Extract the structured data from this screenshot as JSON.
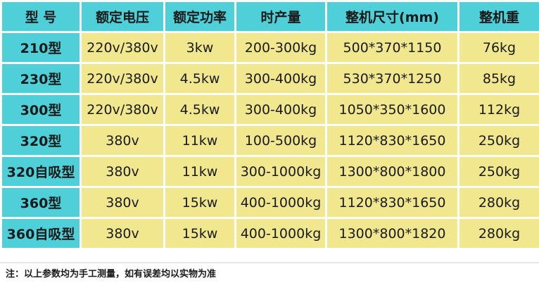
{
  "table": {
    "header": [
      "型  号",
      "额定电压",
      "额定功率",
      "时产量",
      "整机尺寸(mm)",
      "整机重"
    ],
    "rows": [
      [
        "210型",
        "220v/380v",
        "3kw",
        "200-300kg",
        "500*370*1150",
        "76kg"
      ],
      [
        "230型",
        "220v/380v",
        "4.5kw",
        "300-400kg",
        "530*370*1250",
        "85kg"
      ],
      [
        "300型",
        "220v/380v",
        "4.5kw",
        "300-400kg",
        "1050*350*1600",
        "112kg"
      ],
      [
        "320型",
        "380v",
        "11kw",
        "100-500kg",
        "1120*830*1650",
        "250kg"
      ],
      [
        "320自吸型",
        "380v",
        "11kw",
        "300-1000kg",
        "1300*800*1800",
        "250kg"
      ],
      [
        "360型",
        "380v",
        "15kw",
        "400-1000kg",
        "1120*830*1650",
        "280kg"
      ],
      [
        "360自吸型",
        "380v",
        "15kw",
        "400-1000kg",
        "1300*800*1820",
        "280kg"
      ]
    ]
  },
  "note": "注：以上参数均为手工测量，如有误差均以实物为准"
}
